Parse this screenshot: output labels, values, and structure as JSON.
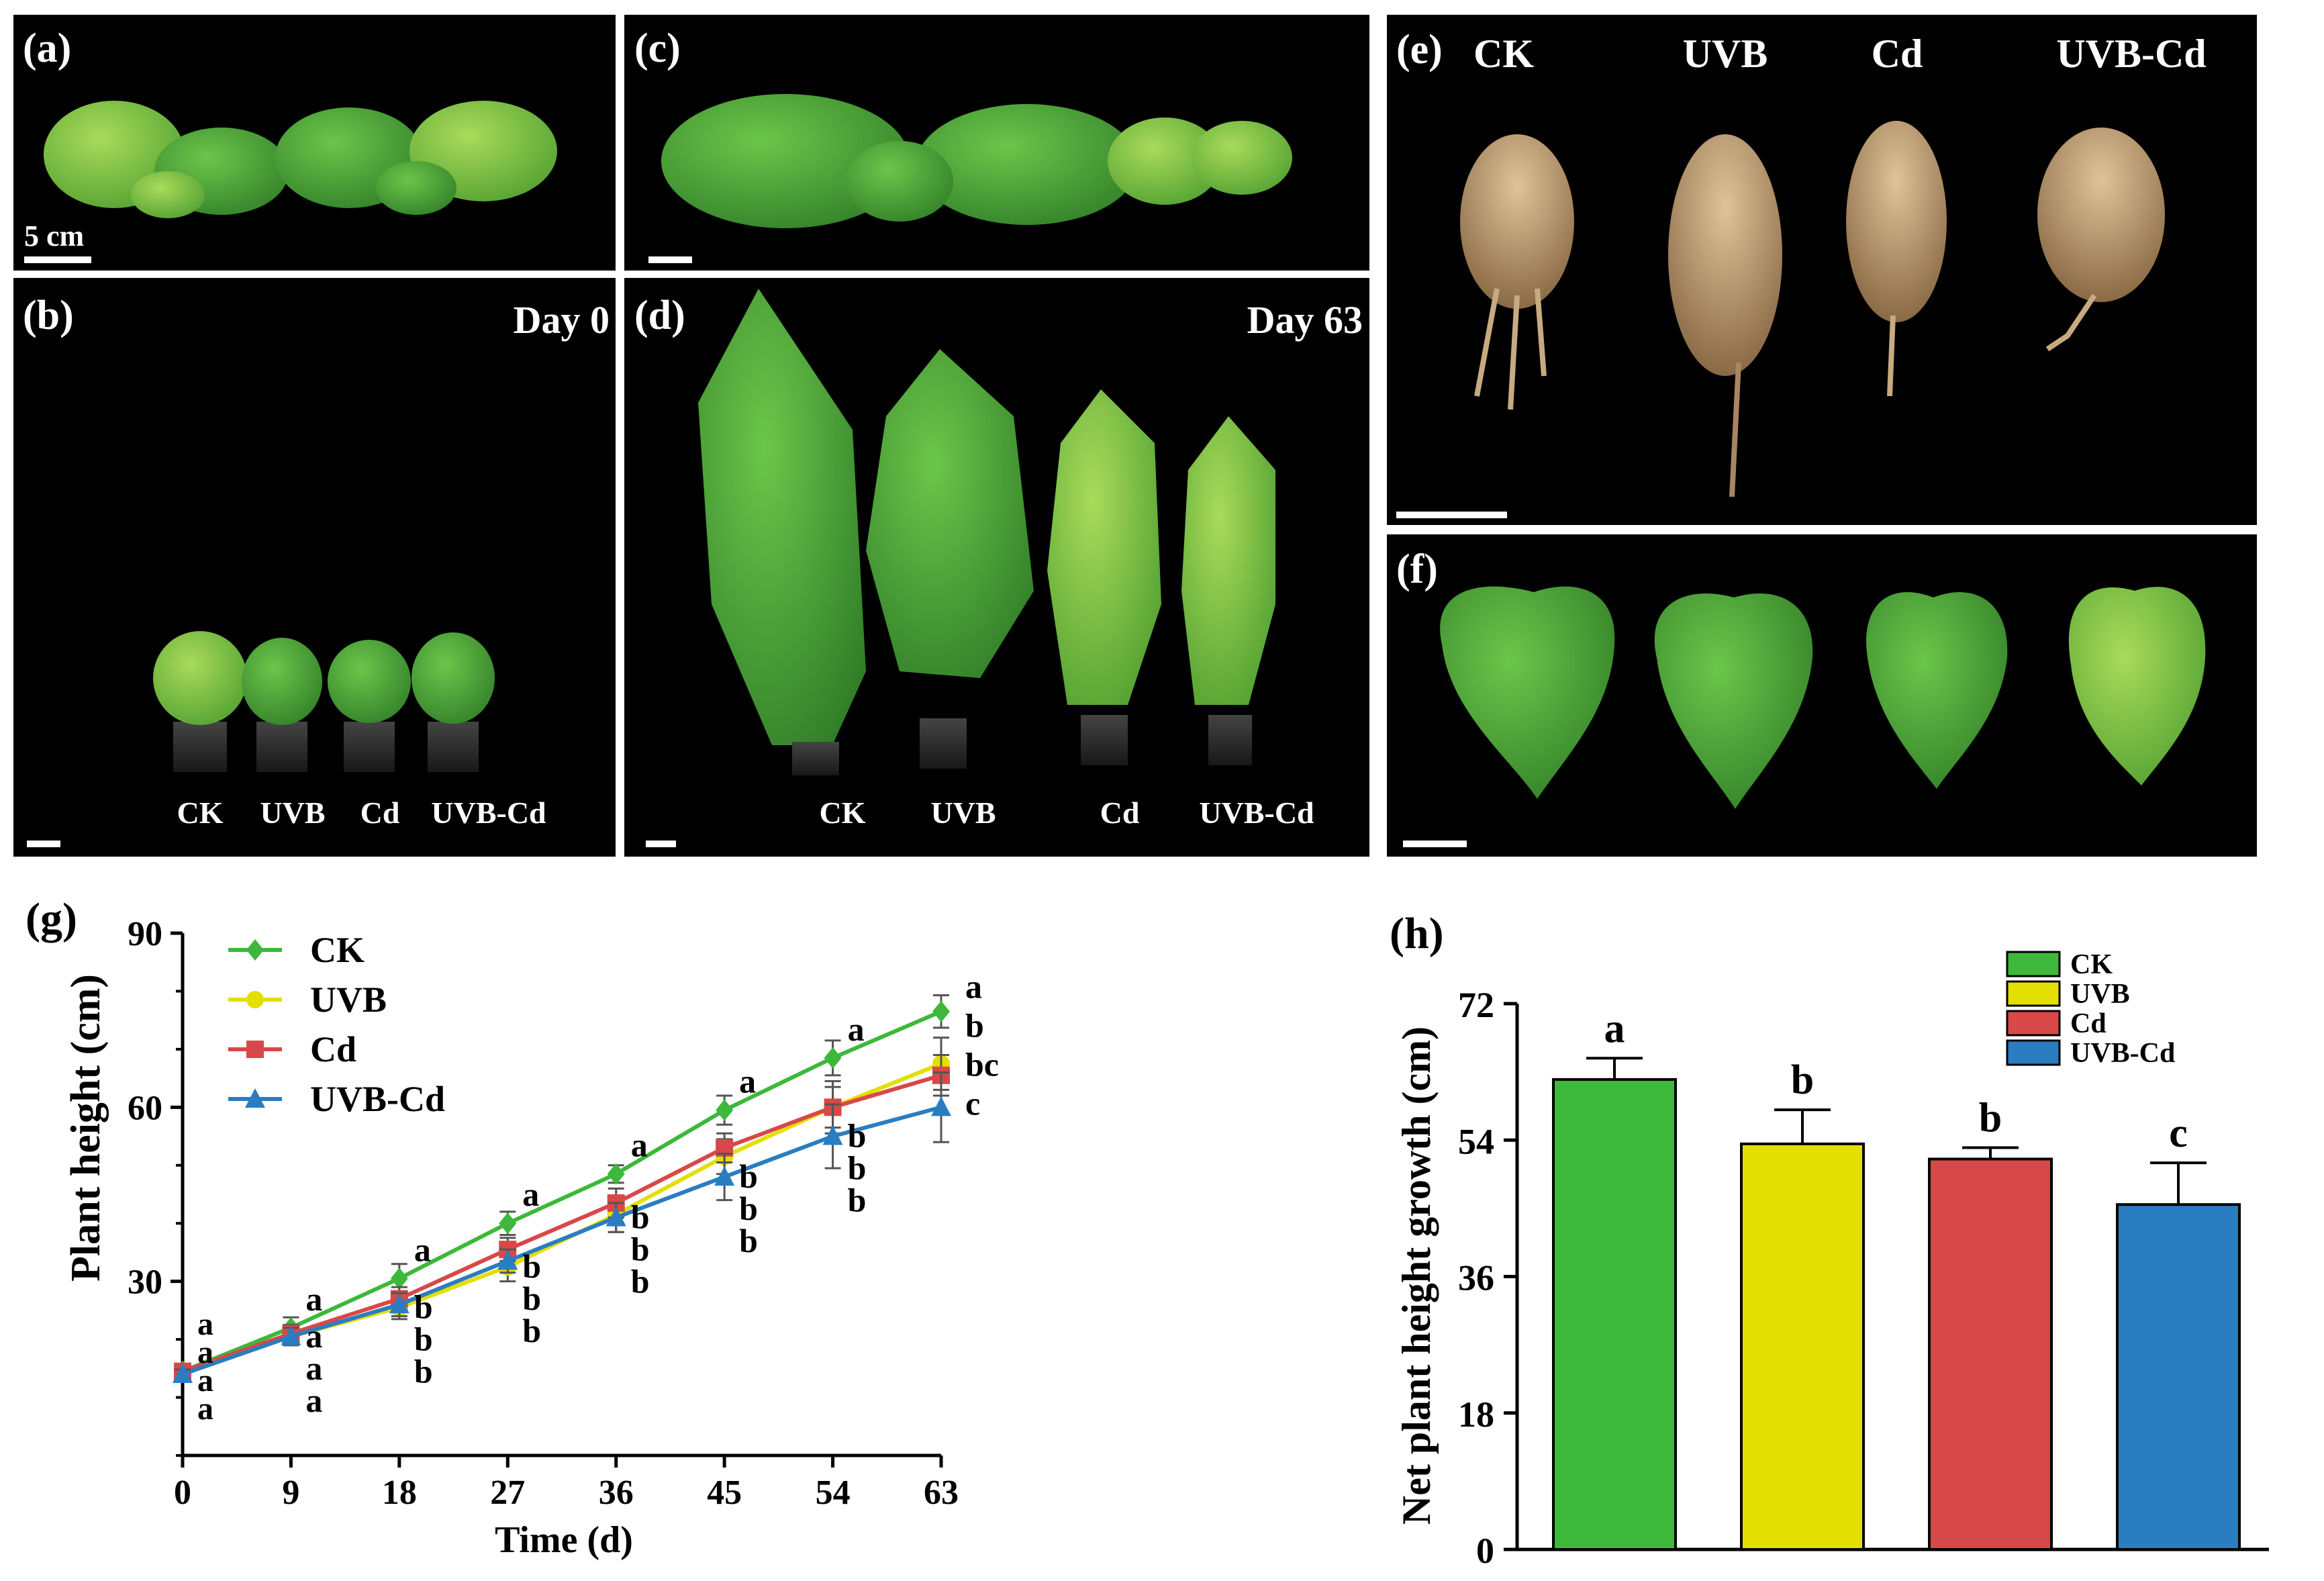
{
  "panels": {
    "a": {
      "label": "(a)",
      "scale_label": "5 cm"
    },
    "b": {
      "label": "(b)",
      "day": "Day 0",
      "groups": [
        "CK",
        "UVB",
        "Cd",
        "UVB-Cd"
      ]
    },
    "c": {
      "label": "(c)"
    },
    "d": {
      "label": "(d)",
      "day": "Day 63",
      "groups": [
        "CK",
        "UVB",
        "Cd",
        "UVB-Cd"
      ]
    },
    "e": {
      "label": "(e)",
      "groups": [
        "CK",
        "UVB",
        "Cd",
        "UVB-Cd"
      ]
    },
    "f": {
      "label": "(f)"
    }
  },
  "colors": {
    "CK": "#3db83a",
    "UVB": "#e3df00",
    "Cd": "#d84848",
    "UVB-Cd": "#2a7dc0",
    "panel_bg": "#000000"
  },
  "chart_data": [
    {
      "panel_label": "(g)",
      "type": "line",
      "xlabel": "Time (d)",
      "ylabel": "Plant height (cm)",
      "x": [
        0,
        9,
        18,
        27,
        36,
        45,
        54,
        63
      ],
      "xlim": [
        0,
        63
      ],
      "ylim": [
        0,
        90
      ],
      "xticks": [
        0,
        9,
        18,
        27,
        36,
        45,
        54,
        63
      ],
      "yticks": [
        30,
        60,
        90
      ],
      "legend_position": "top-left",
      "series": [
        {
          "name": "CK",
          "marker": "diamond",
          "values": [
            14.5,
            22.0,
            30.5,
            40.0,
            48.5,
            59.5,
            68.5,
            76.5
          ],
          "errors": [
            0.8,
            1.8,
            2.5,
            2.0,
            1.5,
            2.5,
            3.0,
            2.8
          ]
        },
        {
          "name": "UVB",
          "marker": "circle",
          "values": [
            14.0,
            20.5,
            25.5,
            32.5,
            41.5,
            51.5,
            60.0,
            67.5
          ],
          "errors": [
            0.8,
            1.5,
            2.0,
            2.5,
            3.0,
            3.0,
            4.5,
            4.5
          ]
        },
        {
          "name": "Cd",
          "marker": "square",
          "values": [
            14.5,
            21.0,
            27.0,
            35.5,
            43.5,
            53.0,
            60.0,
            65.5
          ],
          "errors": [
            0.8,
            1.5,
            2.0,
            2.0,
            2.5,
            2.5,
            3.5,
            3.5
          ]
        },
        {
          "name": "UVB-Cd",
          "marker": "triangle",
          "values": [
            14.0,
            20.5,
            26.0,
            33.5,
            41.0,
            48.0,
            55.0,
            60.0
          ],
          "errors": [
            0.8,
            1.5,
            2.0,
            2.0,
            2.5,
            4.0,
            5.5,
            6.0
          ]
        }
      ],
      "letters": [
        {
          "x": 0,
          "text": [
            "a",
            "a",
            "a",
            "a"
          ]
        },
        {
          "x": 9,
          "text": [
            "a",
            "a",
            "a",
            "a"
          ]
        },
        {
          "x": 18,
          "text": [
            "a",
            "b",
            "b",
            "b"
          ]
        },
        {
          "x": 27,
          "text": [
            "a",
            "b",
            "b",
            "b"
          ]
        },
        {
          "x": 36,
          "text": [
            "a",
            "b",
            "b",
            "b"
          ]
        },
        {
          "x": 45,
          "text": [
            "a",
            "b",
            "b",
            "b"
          ]
        },
        {
          "x": 54,
          "text": [
            "a",
            "b",
            "b",
            "b"
          ]
        },
        {
          "x": 63,
          "text": [
            "a",
            "b",
            "bc",
            "c"
          ]
        }
      ]
    },
    {
      "panel_label": "(h)",
      "type": "bar",
      "xlabel": "",
      "ylabel": "Net plant height growth (cm)",
      "categories": [
        "CK",
        "UVB",
        "Cd",
        "UVB-Cd"
      ],
      "values": [
        62.0,
        53.5,
        51.5,
        45.5
      ],
      "errors": [
        2.8,
        4.5,
        1.5,
        5.5
      ],
      "letters": [
        "a",
        "b",
        "b",
        "c"
      ],
      "ylim": [
        0,
        72
      ],
      "yticks": [
        0,
        18,
        36,
        54,
        72
      ],
      "legend_position": "top-right"
    }
  ]
}
